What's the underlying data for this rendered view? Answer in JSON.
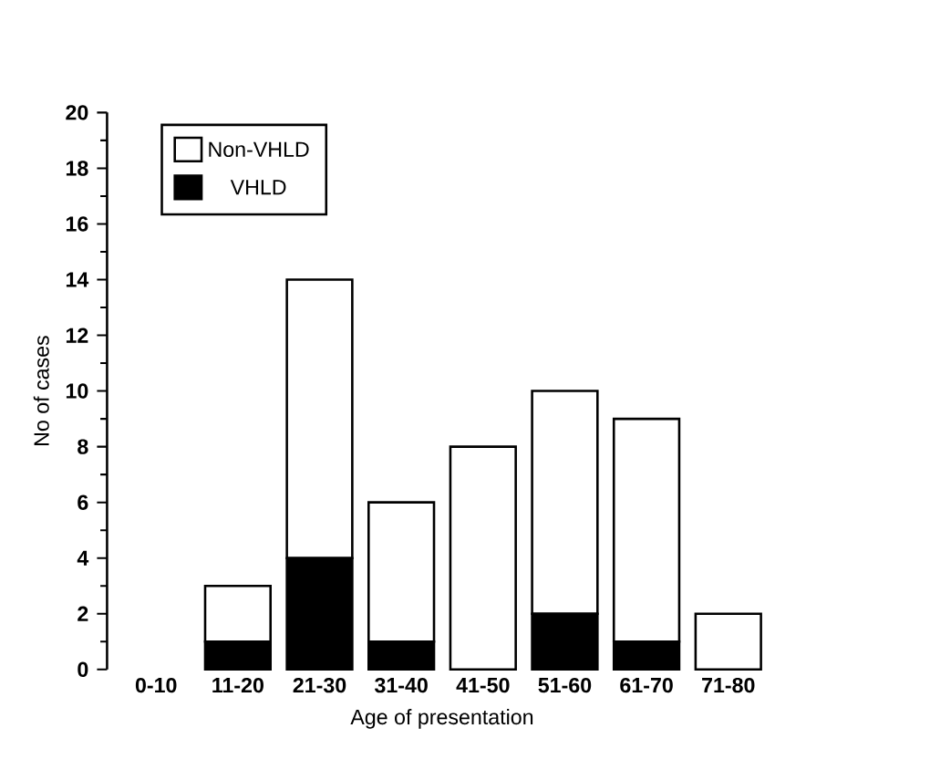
{
  "chart_data": {
    "type": "bar",
    "stacked": true,
    "xlabel": "Age of presentation",
    "ylabel": "No of cases",
    "categories": [
      "0-10",
      "11-20",
      "21-30",
      "31-40",
      "41-50",
      "51-60",
      "61-70",
      "71-80"
    ],
    "series": [
      {
        "name": "VHLD",
        "color": "#000000",
        "values": [
          0,
          1,
          4,
          1,
          0,
          2,
          1,
          0
        ]
      },
      {
        "name": "Non-VHLD",
        "color": "#ffffff",
        "values": [
          0,
          2,
          10,
          5,
          8,
          8,
          8,
          2
        ]
      }
    ],
    "ylim": [
      0,
      20
    ],
    "yticks": [
      0,
      2,
      4,
      6,
      8,
      10,
      12,
      14,
      16,
      18,
      20
    ],
    "legend": "top left"
  }
}
